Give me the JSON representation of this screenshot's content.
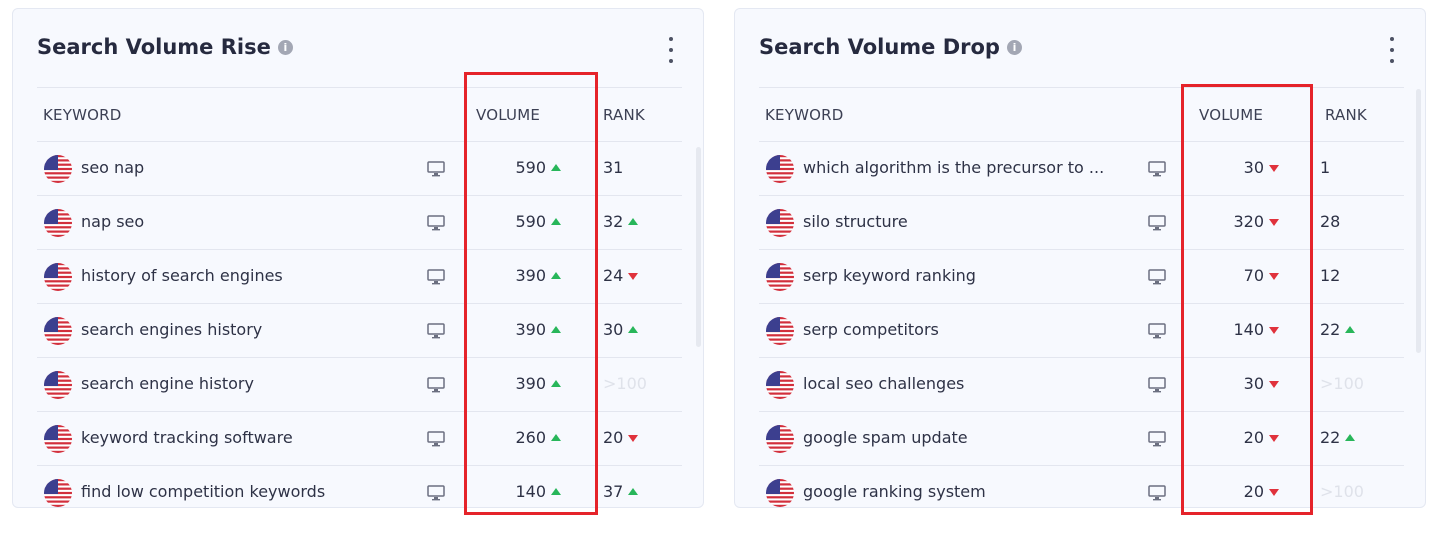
{
  "colors": {
    "up": "#28b65a",
    "down": "#e0323c",
    "highlight": "#e5232a"
  },
  "icons": {
    "flag": "us-flag-icon",
    "device": "desktop-icon",
    "info": "info-icon",
    "menu": "kebab-menu-icon"
  },
  "panels": [
    {
      "title": "Search Volume Rise",
      "headers": {
        "keyword": "KEYWORD",
        "volume": "VOLUME",
        "rank": "RANK"
      },
      "rows": [
        {
          "keyword": "seo nap",
          "volume": "590",
          "volume_trend": "up",
          "rank": "31",
          "rank_trend": "none"
        },
        {
          "keyword": "nap seo",
          "volume": "590",
          "volume_trend": "up",
          "rank": "32",
          "rank_trend": "up"
        },
        {
          "keyword": "history of search engines",
          "volume": "390",
          "volume_trend": "up",
          "rank": "24",
          "rank_trend": "down"
        },
        {
          "keyword": "search engines history",
          "volume": "390",
          "volume_trend": "up",
          "rank": "30",
          "rank_trend": "up"
        },
        {
          "keyword": "search engine history",
          "volume": "390",
          "volume_trend": "up",
          "rank": ">100",
          "rank_trend": "none",
          "rank_faded": true
        },
        {
          "keyword": "keyword tracking software",
          "volume": "260",
          "volume_trend": "up",
          "rank": "20",
          "rank_trend": "down"
        },
        {
          "keyword": "find low competition keywords",
          "volume": "140",
          "volume_trend": "up",
          "rank": "37",
          "rank_trend": "up"
        }
      ]
    },
    {
      "title": "Search Volume Drop",
      "headers": {
        "keyword": "KEYWORD",
        "volume": "VOLUME",
        "rank": "RANK"
      },
      "rows": [
        {
          "keyword": "which algorithm is the precursor to ...",
          "volume": "30",
          "volume_trend": "down",
          "rank": "1",
          "rank_trend": "none"
        },
        {
          "keyword": "silo structure",
          "volume": "320",
          "volume_trend": "down",
          "rank": "28",
          "rank_trend": "none"
        },
        {
          "keyword": "serp keyword ranking",
          "volume": "70",
          "volume_trend": "down",
          "rank": "12",
          "rank_trend": "none"
        },
        {
          "keyword": "serp competitors",
          "volume": "140",
          "volume_trend": "down",
          "rank": "22",
          "rank_trend": "up"
        },
        {
          "keyword": "local seo challenges",
          "volume": "30",
          "volume_trend": "down",
          "rank": ">100",
          "rank_trend": "none",
          "rank_faded": true
        },
        {
          "keyword": "google spam update",
          "volume": "20",
          "volume_trend": "down",
          "rank": "22",
          "rank_trend": "up"
        },
        {
          "keyword": "google ranking system",
          "volume": "20",
          "volume_trend": "down",
          "rank": ">100",
          "rank_trend": "none",
          "rank_faded": true
        }
      ]
    }
  ]
}
